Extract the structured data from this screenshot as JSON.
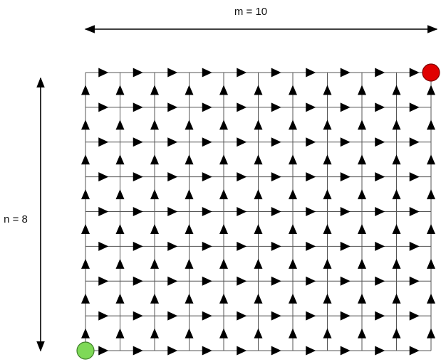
{
  "diagram": {
    "width_label": "m = 10",
    "height_label": "n = 8",
    "columns": 10,
    "rows": 8,
    "start_node_color": "#7ed957",
    "end_node_color": "#e00000",
    "grid_line_color": "#555555",
    "arrow_color": "#000000"
  }
}
